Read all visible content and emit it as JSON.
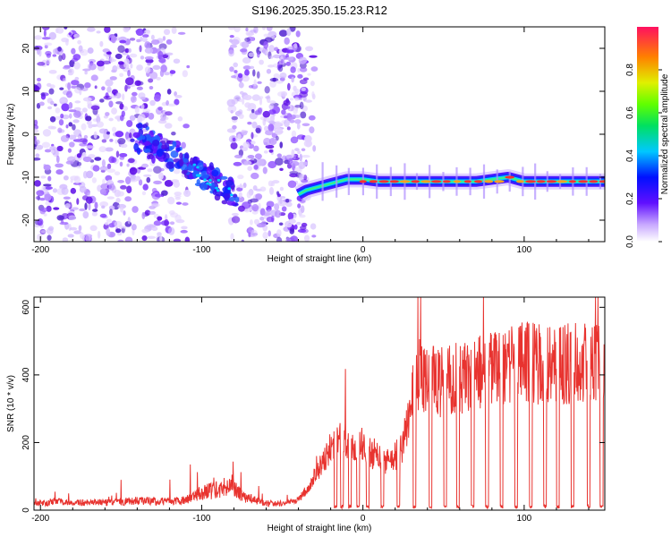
{
  "title": "S196.2025.350.15.23.R12",
  "chart_data": [
    {
      "type": "heatmap",
      "name": "spectrogram",
      "xlabel": "Height of straight line (km)",
      "ylabel": "Frequency (Hz)",
      "xlim": [
        -204,
        150
      ],
      "ylim": [
        -25,
        25
      ],
      "xticks": [
        -200,
        -100,
        0,
        100
      ],
      "yticks": [
        -20,
        -10,
        0,
        10,
        20
      ],
      "ridge": {
        "x": [
          -40,
          -35,
          -30,
          -25,
          -20,
          -15,
          -10,
          -5,
          0,
          10,
          20,
          30,
          40,
          50,
          60,
          70,
          80,
          90,
          100,
          110,
          120,
          130,
          140,
          150
        ],
        "frequency": [
          -14,
          -13,
          -12.5,
          -12,
          -11.5,
          -11,
          -10.5,
          -10.5,
          -10.5,
          -11,
          -11,
          -11,
          -11,
          -11,
          -11,
          -11,
          -10.5,
          -10,
          -11,
          -11,
          -11,
          -11,
          -11,
          -11
        ]
      },
      "colorbar": {
        "label": "Normalized spectral amplitude",
        "range": [
          0.0,
          1.0
        ],
        "ticks": [
          "0.0",
          "0.2",
          "0.4",
          "0.6",
          "0.8"
        ]
      }
    },
    {
      "type": "line",
      "name": "snr",
      "xlabel": "Height of straight line (km)",
      "ylabel": "SNR (10 * v/v)",
      "xlim": [
        -204,
        150
      ],
      "ylim": [
        0,
        630
      ],
      "xticks": [
        -200,
        -100,
        0,
        100
      ],
      "yticks": [
        0,
        200,
        400,
        600
      ],
      "color": "#e8332f",
      "series": [
        {
          "name": "SNR envelope",
          "x": [
            -204,
            -190,
            -180,
            -160,
            -140,
            -120,
            -110,
            -100,
            -90,
            -80,
            -75,
            -60,
            -50,
            -40,
            -35,
            -30,
            -25,
            -20,
            -15,
            -10,
            -5,
            0,
            5,
            10,
            15,
            20,
            25,
            30,
            35,
            40,
            50,
            60,
            70,
            80,
            90,
            100,
            110,
            120,
            130,
            140,
            150
          ],
          "values": [
            20,
            25,
            22,
            22,
            28,
            25,
            30,
            50,
            60,
            75,
            40,
            20,
            20,
            30,
            60,
            100,
            150,
            180,
            200,
            210,
            200,
            190,
            170,
            160,
            140,
            160,
            200,
            320,
            400,
            380,
            380,
            390,
            400,
            420,
            430,
            440,
            430,
            420,
            440,
            430,
            430
          ]
        }
      ]
    }
  ]
}
